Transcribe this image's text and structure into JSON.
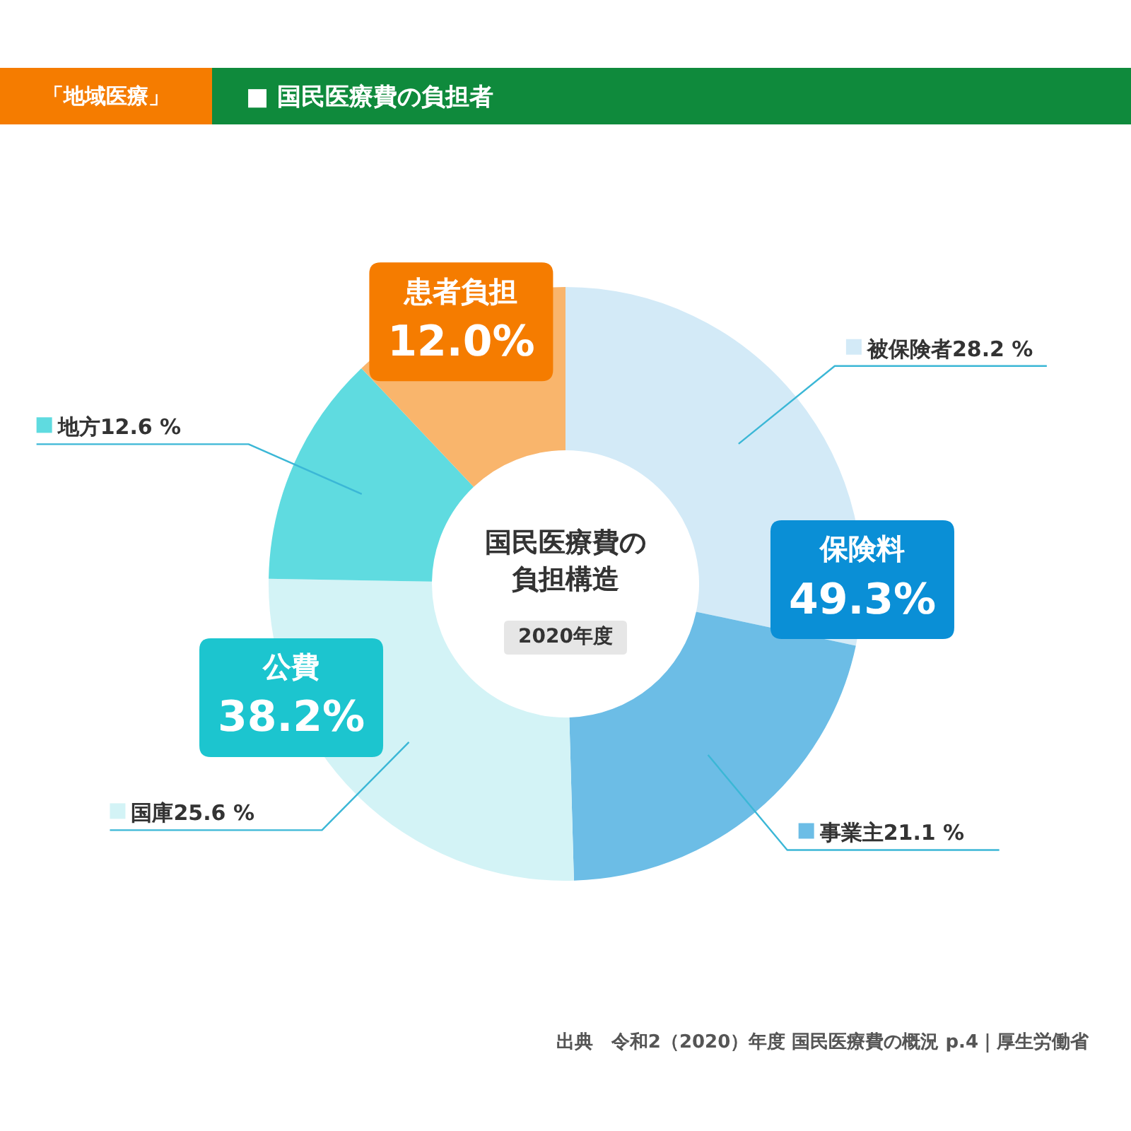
{
  "chart_data": {
    "type": "donut",
    "title": "■ 国民医療費の負担者",
    "subtitle": "「地域医療」",
    "categories": [
      "被保険者",
      "事業主",
      "国庫",
      "地方",
      "患者負担"
    ],
    "values": [
      28.2,
      21.1,
      25.6,
      12.6,
      12.0
    ],
    "colors": [
      "#d3eaf7",
      "#6cbde6",
      "#d3f3f6",
      "#5fdbe0",
      "#f9b56c"
    ],
    "legend": "bottom left",
    "value_labels": [
      "28.2 %",
      "21.1 %",
      "25.6 %",
      "12.6 %",
      "12.0%"
    ],
    "annotations": [
      "保険料\n49.3%",
      "公費\n38.2%",
      "国民医療費の",
      "負担構造",
      "2020年度",
      "出典　令和2（2020）年度 国民医療費の概況 p.4｜厚生労働省"
    ]
  }
}
